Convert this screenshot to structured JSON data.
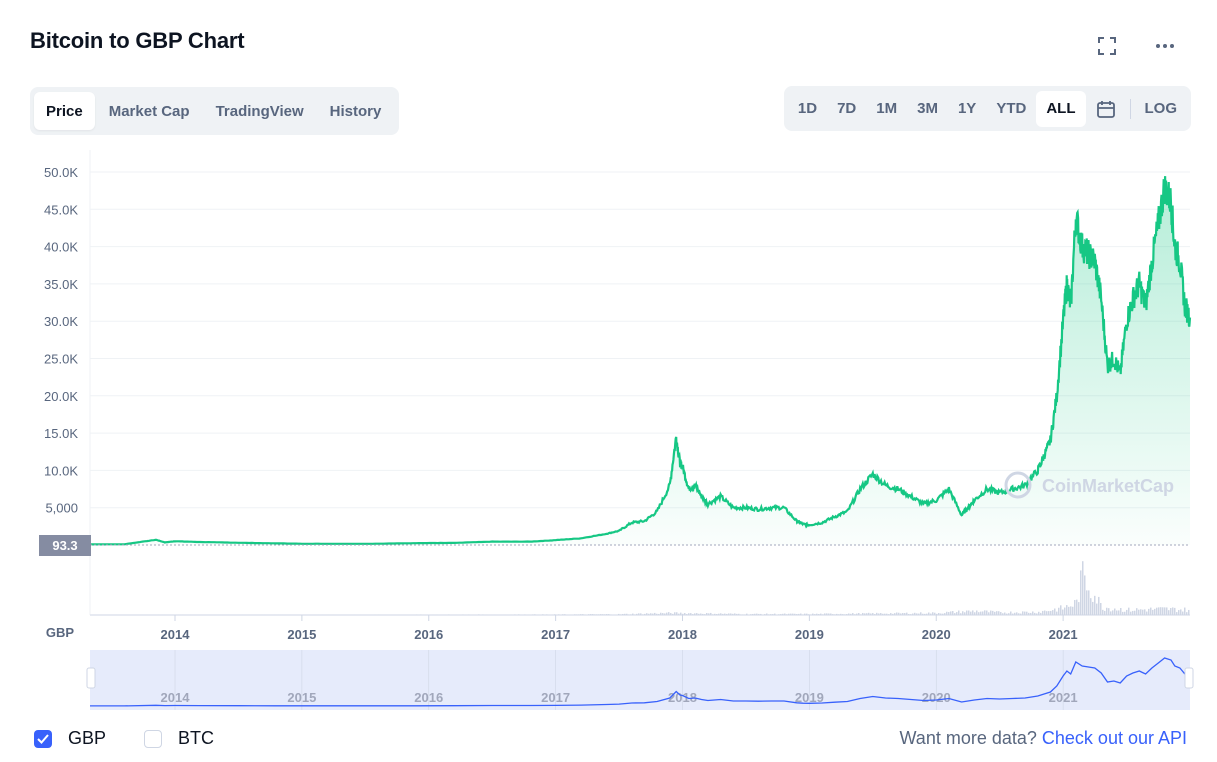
{
  "header": {
    "title": "Bitcoin to GBP Chart"
  },
  "toolbar_icons": [
    "fullscreen-icon",
    "more-icon"
  ],
  "tabs": [
    {
      "label": "Price",
      "active": true
    },
    {
      "label": "Market Cap",
      "active": false
    },
    {
      "label": "TradingView",
      "active": false
    },
    {
      "label": "History",
      "active": false
    }
  ],
  "ranges": [
    {
      "label": "1D",
      "active": false
    },
    {
      "label": "7D",
      "active": false
    },
    {
      "label": "1M",
      "active": false
    },
    {
      "label": "3M",
      "active": false
    },
    {
      "label": "1Y",
      "active": false
    },
    {
      "label": "YTD",
      "active": false
    },
    {
      "label": "ALL",
      "active": true
    }
  ],
  "log_label": "LOG",
  "legend": [
    {
      "label": "GBP",
      "checked": true
    },
    {
      "label": "BTC",
      "checked": false
    }
  ],
  "api": {
    "prompt": "Want more data?",
    "link": "Check out our API"
  },
  "chart_data": {
    "type": "area",
    "currency_label": "GBP",
    "current_price_label": "93.3",
    "watermark": "CoinMarketCap",
    "y_ticks": [
      "5,000",
      "10.0K",
      "15.0K",
      "20.0K",
      "25.0K",
      "30.0K",
      "35.0K",
      "40.0K",
      "45.0K",
      "50.0K"
    ],
    "ylim": [
      0,
      52000
    ],
    "x_ticks": [
      "2014",
      "2015",
      "2016",
      "2017",
      "2018",
      "2019",
      "2020",
      "2021"
    ],
    "xlim": [
      2013.33,
      2022.0
    ],
    "series": [
      {
        "x": [
          2013.33,
          2013.6,
          2013.85,
          2013.92,
          2014.0,
          2014.2,
          2014.5,
          2014.8,
          2015.0,
          2015.3,
          2015.6,
          2015.9,
          2016.2,
          2016.5,
          2016.8,
          2017.0,
          2017.2,
          2017.4,
          2017.5,
          2017.6,
          2017.7,
          2017.8,
          2017.9,
          2017.95,
          2017.98,
          2018.0,
          2018.05,
          2018.1,
          2018.15,
          2018.2,
          2018.3,
          2018.4,
          2018.5,
          2018.6,
          2018.7,
          2018.8,
          2018.9,
          2018.95,
          2019.0,
          2019.1,
          2019.2,
          2019.3,
          2019.4,
          2019.5,
          2019.6,
          2019.7,
          2019.8,
          2019.9,
          2020.0,
          2020.1,
          2020.2,
          2020.25,
          2020.3,
          2020.4,
          2020.5,
          2020.6,
          2020.7,
          2020.8,
          2020.85,
          2020.9,
          2020.95,
          2021.0,
          2021.03,
          2021.06,
          2021.1,
          2021.15,
          2021.2,
          2021.25,
          2021.3,
          2021.35,
          2021.4,
          2021.45,
          2021.5,
          2021.55,
          2021.6,
          2021.65,
          2021.7,
          2021.75,
          2021.8,
          2021.85,
          2021.88,
          2021.92,
          2021.96,
          2022.0
        ],
        "y": [
          80,
          100,
          700,
          350,
          500,
          400,
          300,
          220,
          170,
          160,
          170,
          250,
          280,
          450,
          450,
          650,
          900,
          1500,
          1900,
          3000,
          3200,
          4500,
          8000,
          14500,
          11000,
          10500,
          7500,
          8000,
          6500,
          5500,
          6500,
          5000,
          5000,
          4800,
          5000,
          5000,
          3200,
          2800,
          2700,
          3000,
          3800,
          4500,
          7500,
          9500,
          8000,
          7500,
          6500,
          5500,
          6000,
          7500,
          4000,
          5000,
          6000,
          7500,
          7000,
          7500,
          8000,
          10000,
          12000,
          14000,
          20000,
          30000,
          35000,
          32000,
          44000,
          40000,
          39000,
          38000,
          33000,
          24000,
          25000,
          23000,
          30000,
          33000,
          35000,
          32000,
          38000,
          43000,
          48000,
          46000,
          40000,
          38000,
          32000,
          30500
        ]
      }
    ],
    "volume": {
      "x": [
        2013.33,
        2014.0,
        2015.0,
        2016.0,
        2017.0,
        2017.5,
        2017.9,
        2018.0,
        2018.5,
        2019.0,
        2019.5,
        2020.0,
        2020.3,
        2020.5,
        2020.8,
        2021.0,
        2021.1,
        2021.15,
        2021.3,
        2021.5,
        2021.8,
        2022.0
      ],
      "y": [
        0.2,
        0.3,
        0.3,
        0.4,
        0.5,
        0.8,
        2,
        1.8,
        1,
        1,
        1.5,
        2,
        4,
        2.5,
        3,
        7,
        12,
        40,
        8,
        5,
        6,
        5
      ]
    }
  }
}
